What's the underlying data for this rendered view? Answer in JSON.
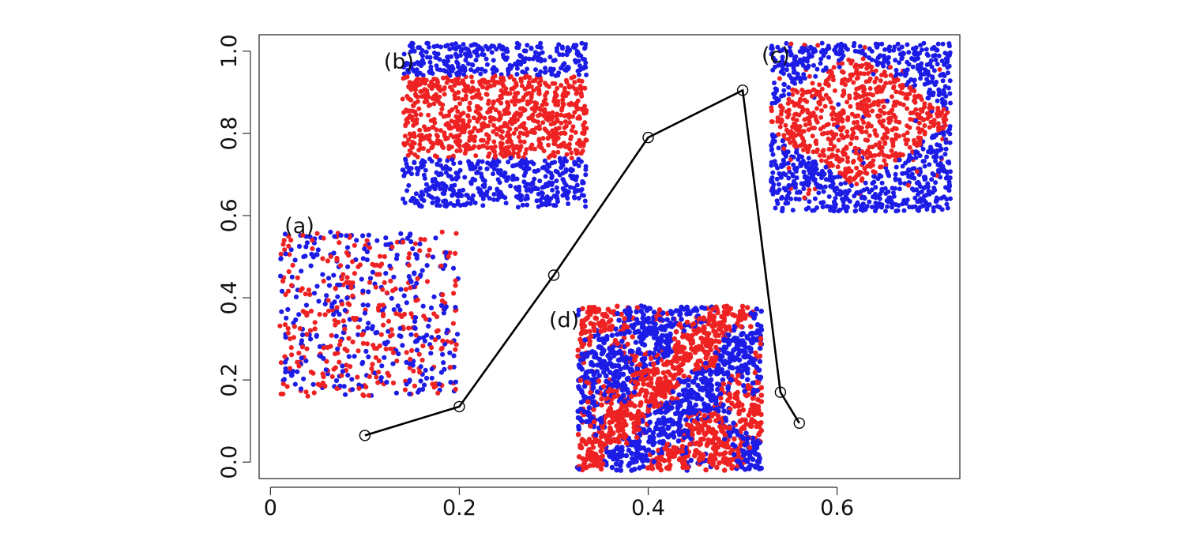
{
  "chart_data": {
    "type": "line",
    "title": "",
    "xlabel": "",
    "ylabel": "",
    "xlim": [
      -0.012,
      0.73
    ],
    "ylim": [
      -0.04,
      1.04
    ],
    "x_ticks": [
      0,
      0.2,
      0.4,
      0.6
    ],
    "x_tick_labels": [
      "0",
      "0.2",
      "0.4",
      "0.6"
    ],
    "y_ticks": [
      0.0,
      0.2,
      0.4,
      0.6,
      0.8,
      1.0
    ],
    "y_tick_labels": [
      "0.0",
      "0.2",
      "0.4",
      "0.6",
      "0.8",
      "1.0"
    ],
    "grid": false,
    "legend": "none",
    "series": [
      {
        "x": [
          0.1,
          0.2,
          0.3,
          0.4,
          0.5,
          0.54,
          0.56
        ],
        "y": [
          0.065,
          0.135,
          0.455,
          0.79,
          0.905,
          0.17,
          0.095
        ],
        "marker": "open-circle",
        "color": "#000000"
      }
    ],
    "colors": {
      "red": "#ee2222",
      "blue": "#1c1ce6",
      "line": "#000000"
    },
    "insets": [
      {
        "label": "(a)",
        "pattern": "random-mixed",
        "label_at": [
          0.015,
          0.575
        ],
        "box": {
          "x": [
            0.01,
            0.2
          ],
          "y": [
            0.16,
            0.56
          ]
        }
      },
      {
        "label": "(b)",
        "pattern": "stripes",
        "label_at": [
          0.12,
          0.975
        ],
        "box": {
          "x": [
            0.14,
            0.335
          ],
          "y": [
            0.62,
            1.02
          ]
        }
      },
      {
        "label": "(c)",
        "pattern": "diamond",
        "label_at": [
          0.52,
          0.99
        ],
        "box": {
          "x": [
            0.53,
            0.72
          ],
          "y": [
            0.61,
            1.02
          ]
        }
      },
      {
        "label": "(d)",
        "pattern": "clustered-mixed",
        "label_at": [
          0.295,
          0.345
        ],
        "box": {
          "x": [
            0.325,
            0.52
          ],
          "y": [
            -0.02,
            0.38
          ]
        }
      }
    ]
  }
}
